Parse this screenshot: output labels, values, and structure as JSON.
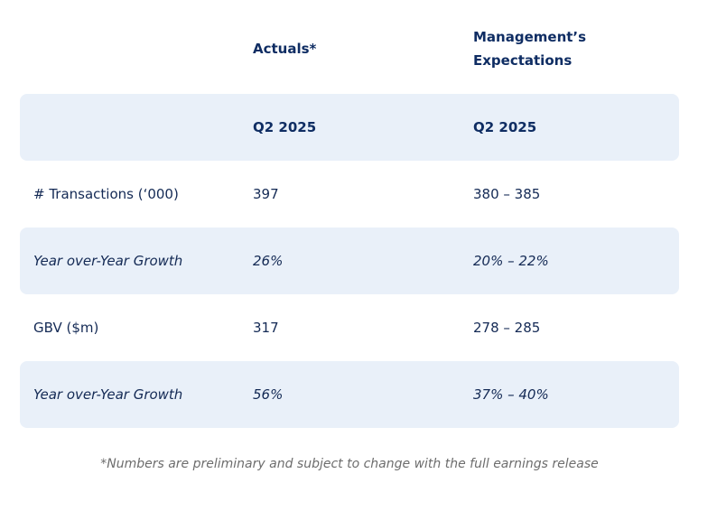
{
  "header": {
    "actuals": "Actuals*",
    "expectations_line1": "Management’s",
    "expectations_line2": "Expectations"
  },
  "rows": [
    {
      "label": "",
      "actual": "Q2 2025",
      "expected": "Q2 2025"
    },
    {
      "label": "# Transactions (‘000)",
      "actual": "397",
      "expected": "380 – 385"
    },
    {
      "label": "Year over-Year Growth",
      "actual": "26%",
      "expected": "20% – 22%"
    },
    {
      "label": "GBV ($m)",
      "actual": "317",
      "expected": "278 – 285"
    },
    {
      "label": "Year over-Year Growth",
      "actual": "56%",
      "expected": "37% – 40%"
    }
  ],
  "footnote": "*Numbers are preliminary and subject to change with the full earnings release"
}
